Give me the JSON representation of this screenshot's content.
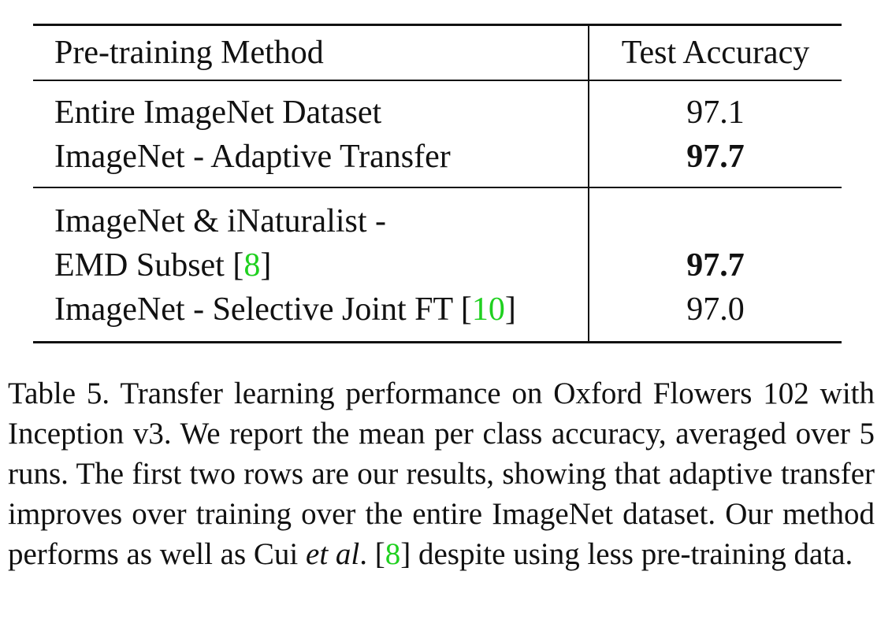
{
  "table": {
    "headers": {
      "method": "Pre-training Method",
      "accuracy": "Test Accuracy"
    },
    "group1": [
      {
        "method": "Entire ImageNet Dataset",
        "accuracy": "97.1",
        "bold": false
      },
      {
        "method": "ImageNet - Adaptive Transfer",
        "accuracy": "97.7",
        "bold": true
      }
    ],
    "group2": {
      "row1_method_line1": "ImageNet & iNaturalist -",
      "row1_method_line2_text": "EMD Subset [",
      "row1_cite": "8",
      "row1_close": "]",
      "row1_accuracy": "97.7",
      "row2_method_text": "ImageNet - Selective Joint FT [",
      "row2_cite": "10",
      "row2_close": "]",
      "row2_accuracy": "97.0"
    }
  },
  "caption": {
    "part1": "Table 5. Transfer learning performance on Oxford Flowers 102 with Inception v3.  We report the mean per class accuracy, averaged over 5 runs. The first two rows are our results, showing that adaptive transfer improves over training over the entire ImageNet dataset.  Our method performs as well as Cui ",
    "etal": "et al",
    "part2": ". [",
    "cite": "8",
    "part3": "] despite using less pre-training data."
  },
  "colors": {
    "citation": "#1fd01f",
    "text": "#111111"
  }
}
